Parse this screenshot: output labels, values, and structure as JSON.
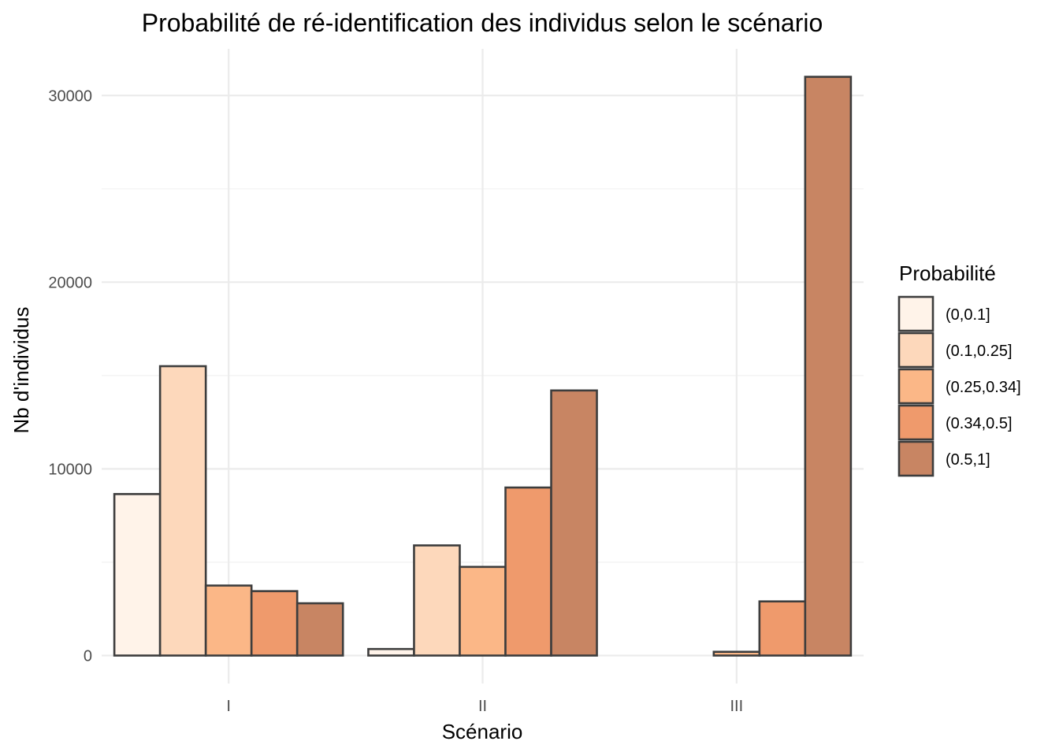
{
  "chart_data": {
    "type": "bar",
    "title": "Probabilité de ré-identification des individus selon le scénario",
    "xlabel": "Scénario",
    "ylabel": "Nb d'individus",
    "categories": [
      "I",
      "II",
      "III"
    ],
    "y_ticks": [
      0,
      10000,
      20000,
      30000
    ],
    "y_tick_labels": [
      "0",
      "10000",
      "20000",
      "30000"
    ],
    "ylim": [
      -1500,
      32500
    ],
    "grid": true,
    "legend": {
      "title": "Probabilité",
      "position": "right"
    },
    "series": [
      {
        "name": "(0,0.1]",
        "color": "#fff3e9",
        "values": [
          8650,
          350,
          0
        ]
      },
      {
        "name": "(0.1,0.25]",
        "color": "#fdd8bb",
        "values": [
          15500,
          5900,
          0
        ]
      },
      {
        "name": "(0.25,0.34]",
        "color": "#fbb787",
        "values": [
          3750,
          4750,
          200
        ]
      },
      {
        "name": "(0.34,0.5]",
        "color": "#ef9a6c",
        "values": [
          3450,
          9000,
          2900
        ]
      },
      {
        "name": "(0.5,1]",
        "color": "#c88563",
        "values": [
          2800,
          14200,
          31000
        ]
      }
    ]
  }
}
